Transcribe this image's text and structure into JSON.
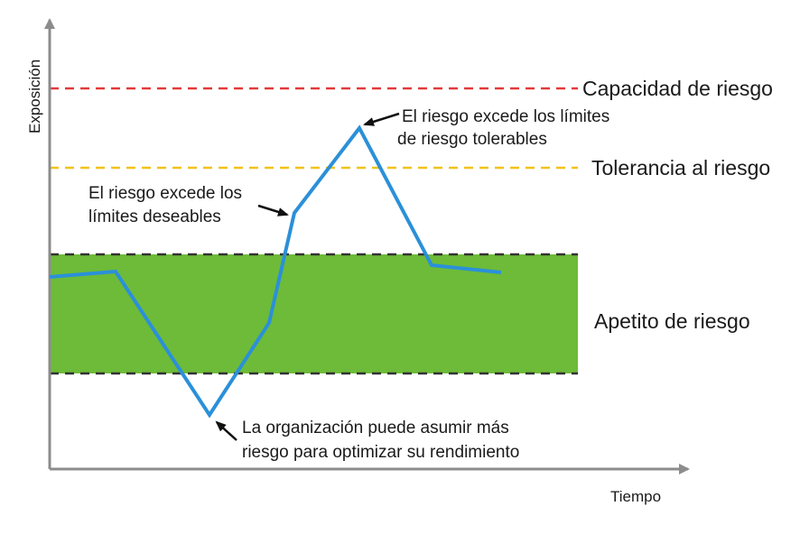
{
  "axes": {
    "y_label": "Exposición",
    "x_label": "Tiempo"
  },
  "thresholds": {
    "capacity": {
      "label": "Capacidad de riesgo",
      "color": "#e33a3a"
    },
    "tolerance": {
      "label": "Tolerancia al riesgo",
      "color": "#f2c21b"
    },
    "appetite": {
      "label": "Apetito de riesgo",
      "color": "#6dbb38",
      "border_color": "#333333"
    }
  },
  "series": {
    "color": "#2b90d9",
    "line_style": "solid"
  },
  "annotations": {
    "exceeds_tolerable": {
      "line1": "El riesgo excede los límites",
      "line2": "de riesgo tolerables"
    },
    "exceeds_desirable": {
      "line1": "El riesgo excede los",
      "line2": "límites deseables"
    },
    "more_risk": {
      "line1": "La organización puede asumir más",
      "line2": "riesgo para optimizar su rendimiento"
    }
  },
  "colors": {
    "axis": "#8c8c8c",
    "text": "#1a1a1a",
    "arrow": "#111111"
  }
}
